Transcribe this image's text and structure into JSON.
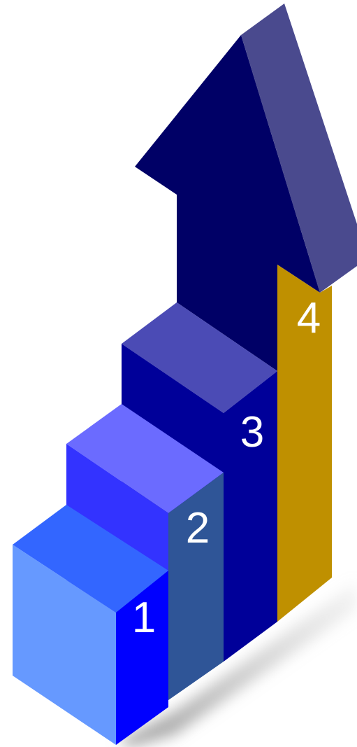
{
  "steps": [
    {
      "label": "1",
      "colors": {
        "front": "#6699FF",
        "side": "#0000FF",
        "top": "#3366FF"
      }
    },
    {
      "label": "2",
      "colors": {
        "front": "#3333FF",
        "side": "#2F5597",
        "top": "#6B6BFF"
      }
    },
    {
      "label": "3",
      "colors": {
        "front": "#000099",
        "side": "#000099",
        "top": "#4B4BB5"
      }
    },
    {
      "label": "4",
      "colors": {
        "front": "#BF9000",
        "side": "#BF9000",
        "top": "#BF9000"
      }
    }
  ],
  "arrow": {
    "colors": {
      "front": "#000066",
      "side": "#4A4A8E"
    }
  },
  "shadow_color": "#9A9A9A"
}
